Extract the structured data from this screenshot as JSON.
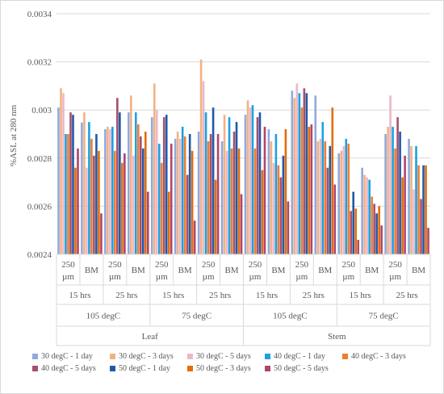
{
  "chart_data": {
    "type": "bar",
    "ylabel": "%ASL at 280 nm",
    "ylim": [
      0.0024,
      0.0034
    ],
    "yticks": [
      "0.0024",
      "0.0026",
      "0.0028",
      "0.003",
      "0.0032",
      "0.0034"
    ],
    "grid": true,
    "legend_position": "bottom",
    "category_levels": {
      "level1": [
        "250 µm",
        "BM",
        "250 µm",
        "BM",
        "250 µm",
        "BM",
        "250 µm",
        "BM",
        "250 µm",
        "BM",
        "250 µm",
        "BM",
        "250 µm",
        "BM",
        "250 µm",
        "BM"
      ],
      "level2": [
        "15 hrs",
        "25 hrs",
        "15 hrs",
        "25 hrs",
        "15 hrs",
        "25 hrs",
        "15 hrs",
        "25 hrs"
      ],
      "level3": [
        "105 degC",
        "75 degC",
        "105 degC",
        "75 degC"
      ],
      "level4": [
        "Leaf",
        "Stem"
      ]
    },
    "series": [
      {
        "name": "30 degC - 1 day",
        "color": "#8FAADC",
        "values": [
          0.00301,
          0.002948,
          0.00292,
          0.00299,
          0.00297,
          0.00288,
          0.00291,
          0.00287,
          0.00298,
          0.00292,
          0.00308,
          0.00306,
          0.00282,
          0.00276,
          0.0029,
          0.00288
        ]
      },
      {
        "name": "30 degC - 3 days",
        "color": "#F4B183",
        "values": [
          0.00309,
          0.00299,
          0.00293,
          0.00306,
          0.00311,
          0.00291,
          0.00321,
          0.00298,
          0.00304,
          0.00287,
          0.00305,
          0.00287,
          0.00283,
          0.00273,
          0.00293,
          0.00285
        ]
      },
      {
        "name": "30 degC - 5 days",
        "color": "#E9B8C8",
        "values": [
          0.00307,
          0.00276,
          0.00292,
          0.00281,
          0.003,
          0.00288,
          0.00312,
          0.00283,
          0.00301,
          0.00278,
          0.00311,
          0.00288,
          0.00285,
          0.00272,
          0.00306,
          0.00267
        ]
      },
      {
        "name": "40 degC - 1 day",
        "color": "#1CA1E2",
        "values": [
          0.0029,
          0.00295,
          0.00293,
          0.00299,
          0.00286,
          0.00293,
          0.00299,
          0.00297,
          0.00302,
          0.0029,
          0.00307,
          0.00295,
          0.00288,
          0.00271,
          0.00293,
          0.00285
        ]
      },
      {
        "name": "40 degC - 3 days",
        "color": "#ED7D31",
        "values": [
          0.0029,
          0.00288,
          0.00283,
          0.00294,
          0.00278,
          0.00289,
          0.00287,
          0.00284,
          0.00284,
          0.00277,
          0.00301,
          0.00287,
          0.00286,
          0.00264,
          0.00284,
          0.00277
        ]
      },
      {
        "name": "40 degC - 5 days",
        "color": "#A5506E",
        "values": [
          0.00299,
          0.00281,
          0.00305,
          0.00289,
          0.00297,
          0.00273,
          0.0029,
          0.00291,
          0.00297,
          0.00272,
          0.00309,
          0.00276,
          0.00258,
          0.00261,
          0.00297,
          0.00263
        ]
      },
      {
        "name": "50 degC - 1 day",
        "color": "#1F5AA6",
        "values": [
          0.00298,
          0.0029,
          0.00299,
          0.00284,
          0.00298,
          0.0029,
          0.00301,
          0.00295,
          0.00299,
          0.00281,
          0.00307,
          0.00285,
          0.00266,
          0.00257,
          0.00291,
          0.00277
        ]
      },
      {
        "name": "50 degC - 3 days",
        "color": "#E46C0A",
        "values": [
          0.00276,
          0.00283,
          0.00278,
          0.00291,
          0.00266,
          0.00283,
          0.00271,
          0.00284,
          0.00275,
          0.00292,
          0.00293,
          0.00301,
          0.00259,
          0.0026,
          0.00272,
          0.00277
        ]
      },
      {
        "name": "50 degC - 5 days",
        "color": "#B0456A",
        "values": [
          0.00284,
          0.00257,
          0.00282,
          0.00266,
          0.00286,
          0.00254,
          0.0029,
          0.00265,
          0.00293,
          0.00262,
          0.00294,
          0.00269,
          0.00246,
          0.00252,
          0.00281,
          0.00251
        ]
      }
    ]
  }
}
